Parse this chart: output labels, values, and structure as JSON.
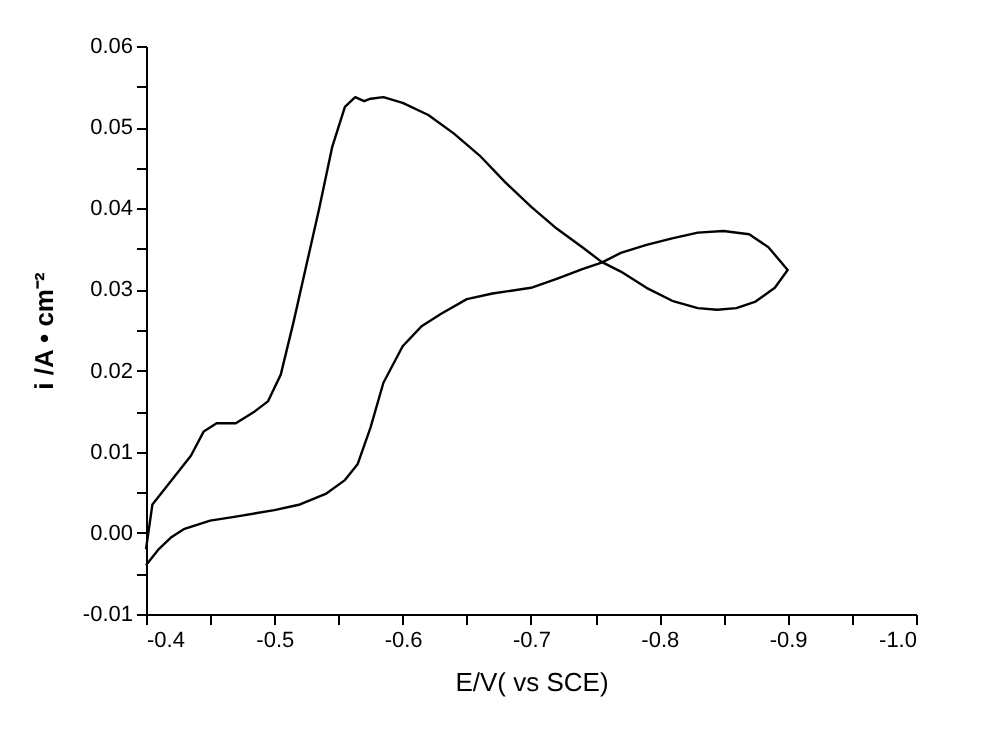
{
  "chart_data": {
    "type": "line",
    "xlabel": "E/V( vs  SCE)",
    "ylabel": "i /A • cm⁻²",
    "x": [
      -0.4,
      -0.41,
      -0.42,
      -0.43,
      -0.45,
      -0.47,
      -0.5,
      -0.52,
      -0.54,
      -0.555,
      -0.565,
      -0.575,
      -0.585,
      -0.6,
      -0.615,
      -0.63,
      -0.65,
      -0.67,
      -0.7,
      -0.72,
      -0.74,
      -0.755,
      -0.77,
      -0.79,
      -0.81,
      -0.83,
      -0.85,
      -0.87,
      -0.885,
      -0.9,
      -0.89,
      -0.875,
      -0.86,
      -0.845,
      -0.83,
      -0.81,
      -0.79,
      -0.77,
      -0.755,
      -0.74,
      -0.72,
      -0.7,
      -0.68,
      -0.66,
      -0.64,
      -0.62,
      -0.6,
      -0.585,
      -0.575,
      -0.57,
      -0.563,
      -0.555,
      -0.545,
      -0.535,
      -0.525,
      -0.515,
      -0.505,
      -0.495,
      -0.485,
      -0.47,
      -0.455,
      -0.445,
      -0.435,
      -0.425,
      -0.415,
      -0.405,
      -0.4
    ],
    "series": [
      {
        "color": "#000000",
        "values": [
          -0.004,
          -0.002,
          -0.0005,
          0.0005,
          0.0015,
          0.002,
          0.0028,
          0.0035,
          0.0048,
          0.0065,
          0.0085,
          0.013,
          0.0185,
          0.023,
          0.0255,
          0.027,
          0.0288,
          0.0295,
          0.0302,
          0.0313,
          0.0325,
          0.0333,
          0.0345,
          0.0355,
          0.0363,
          0.037,
          0.0372,
          0.0368,
          0.0352,
          0.0324,
          0.0302,
          0.0285,
          0.0277,
          0.0275,
          0.0277,
          0.0286,
          0.0302,
          0.0322,
          0.0334,
          0.0352,
          0.0375,
          0.0402,
          0.0432,
          0.0465,
          0.0492,
          0.0515,
          0.053,
          0.0537,
          0.0535,
          0.0532,
          0.0537,
          0.0525,
          0.0475,
          0.04,
          0.033,
          0.026,
          0.0195,
          0.0162,
          0.015,
          0.0135,
          0.0135,
          0.0125,
          0.0095,
          0.0075,
          0.0055,
          0.0035,
          -0.002
        ]
      }
    ],
    "xlim": [
      -0.4,
      -1.0
    ],
    "xticks": [
      -0.4,
      {
        "value": -0.45,
        "label": null
      },
      -0.5,
      {
        "value": -0.55,
        "label": null
      },
      -0.6,
      {
        "value": -0.65,
        "label": null
      },
      -0.7,
      {
        "value": -0.75,
        "label": null
      },
      -0.8,
      {
        "value": -0.85,
        "label": null
      },
      -0.9,
      {
        "value": -0.95,
        "label": null
      },
      {
        "value": -1.0,
        "label": "-1.0"
      }
    ],
    "ylim": [
      -0.01,
      0.06
    ],
    "yticks": [
      -0.01,
      {
        "value": -0.005,
        "label": null
      },
      {
        "value": 0,
        "label": "0.00"
      },
      {
        "value": 0.005,
        "label": null
      },
      0.01,
      {
        "value": 0.015,
        "label": null
      },
      0.02,
      {
        "value": 0.025,
        "label": null
      },
      0.03,
      {
        "value": 0.035,
        "label": null
      },
      0.04,
      {
        "value": 0.045,
        "label": null
      },
      0.05,
      {
        "value": 0.055,
        "label": null
      },
      0.06
    ],
    "grid": false,
    "marker": "none",
    "line_style": "solid"
  }
}
